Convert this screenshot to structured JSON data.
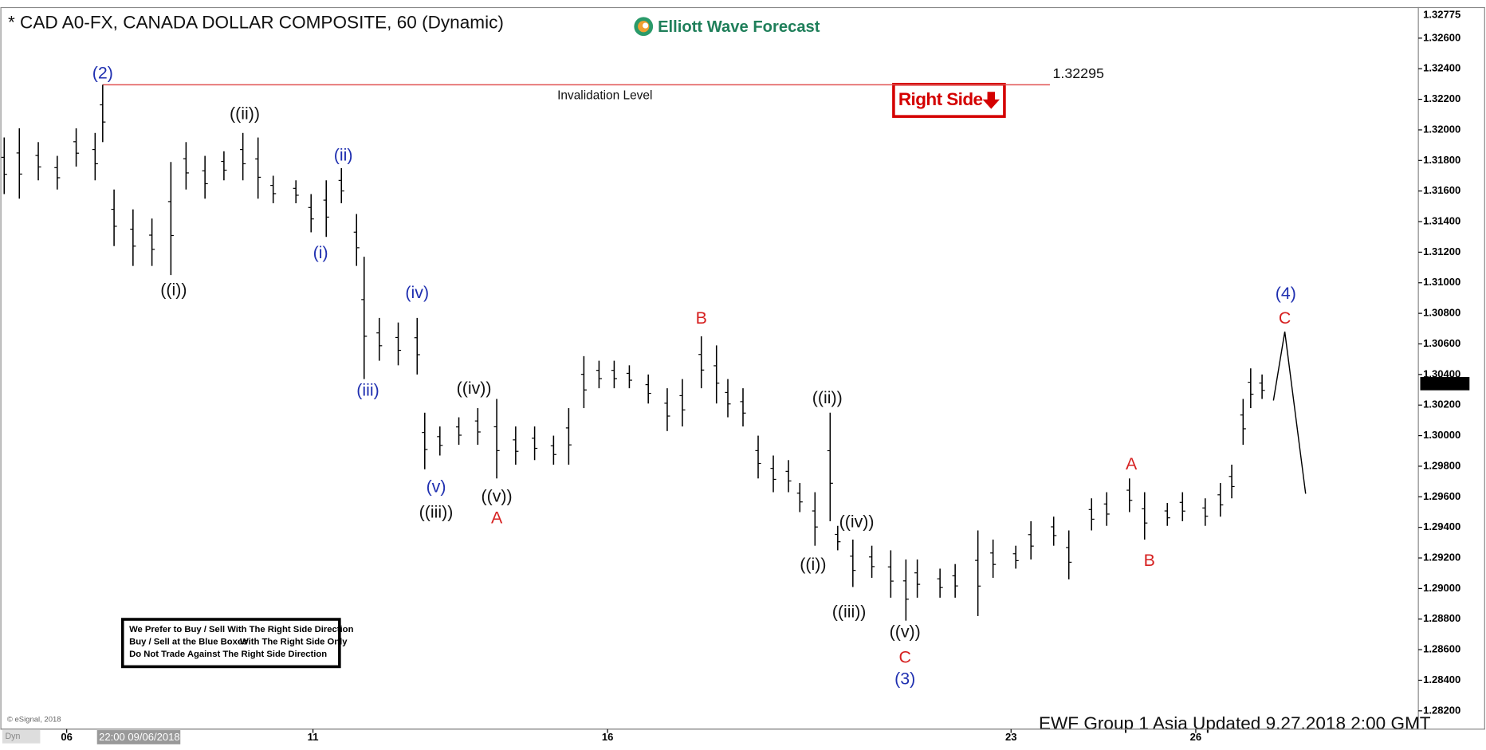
{
  "chart_data": {
    "type": "ohlc",
    "title": "* CAD A0-FX, CANADA DOLLAR COMPOSITE, 60 (Dynamic)",
    "brand": "Elliott Wave Forecast",
    "footer": "EWF Group 1 Asia Updated 9.27.2018 2:00 GMT",
    "source": "© eSignal, 2018",
    "mode": "Dyn",
    "cursor_label": "22:00 09/06/2018",
    "right_side": "Right Side",
    "notes": [
      "We Prefer to Buy / Sell With The Right Side Direction",
      "Buy / Sell at the Blue Boxes",
      "With The Right Side Only",
      "Do Not Trade Against The Right Side Direction"
    ],
    "invalidation": {
      "value": 1.32295,
      "label": "1.32295",
      "text": "Invalidation Level",
      "color": "#e05050"
    },
    "high_label": {
      "value": 1.32775,
      "label": "1.32775"
    },
    "last_price": {
      "value": 1.3034,
      "label": "1.30340"
    },
    "color": "#000000",
    "xlim": [
      0,
      374.25
    ],
    "ylim": [
      1.2808,
      1.328
    ],
    "xticks": [
      {
        "value": 17.5,
        "label": "06"
      },
      {
        "value": 82.5,
        "label": "11"
      },
      {
        "value": 160.25,
        "label": "16"
      },
      {
        "value": 266.75,
        "label": "23"
      },
      {
        "value": 315.5,
        "label": "26"
      }
    ],
    "yticks": [
      {
        "value": 1.326,
        "label": "1.32600"
      },
      {
        "value": 1.324,
        "label": "1.32400"
      },
      {
        "value": 1.322,
        "label": "1.32200"
      },
      {
        "value": 1.32,
        "label": "1.32000"
      },
      {
        "value": 1.318,
        "label": "1.31800"
      },
      {
        "value": 1.316,
        "label": "1.31600"
      },
      {
        "value": 1.314,
        "label": "1.31400"
      },
      {
        "value": 1.312,
        "label": "1.31200"
      },
      {
        "value": 1.31,
        "label": "1.31000"
      },
      {
        "value": 1.308,
        "label": "1.30800"
      },
      {
        "value": 1.306,
        "label": "1.30600"
      },
      {
        "value": 1.304,
        "label": "1.30400"
      },
      {
        "value": 1.302,
        "label": "1.30200"
      },
      {
        "value": 1.3,
        "label": "1.30000"
      },
      {
        "value": 1.298,
        "label": "1.29800"
      },
      {
        "value": 1.296,
        "label": "1.29600"
      },
      {
        "value": 1.294,
        "label": "1.29400"
      },
      {
        "value": 1.292,
        "label": "1.29200"
      },
      {
        "value": 1.29,
        "label": "1.29000"
      },
      {
        "value": 1.288,
        "label": "1.28800"
      },
      {
        "value": 1.286,
        "label": "1.28600"
      },
      {
        "value": 1.284,
        "label": "1.28400"
      },
      {
        "value": 1.282,
        "label": "1.28200"
      }
    ],
    "x": [
      1,
      5,
      10,
      15,
      20,
      25,
      27,
      30,
      35,
      40,
      45,
      49,
      54,
      59,
      64,
      68,
      72,
      78,
      82,
      86,
      90,
      94,
      96,
      100,
      105,
      110,
      112,
      116,
      121,
      126,
      131,
      136,
      141,
      146,
      150,
      154,
      158,
      162,
      166,
      171,
      176,
      180,
      185,
      189,
      192,
      196,
      200,
      204,
      208,
      211,
      215,
      219,
      221,
      225,
      230,
      235,
      239,
      242,
      248,
      252,
      258,
      262,
      268,
      272,
      278,
      282,
      288,
      292,
      298,
      302,
      308,
      312,
      318,
      322,
      325,
      328,
      330,
      333
    ],
    "high": [
      1.3195,
      1.3201,
      1.3192,
      1.3183,
      1.3201,
      1.3198,
      1.32295,
      1.3161,
      1.3148,
      1.3142,
      1.3179,
      1.3192,
      1.3183,
      1.3186,
      1.3198,
      1.3195,
      1.317,
      1.3167,
      1.3158,
      1.3167,
      1.3175,
      1.3145,
      1.3117,
      1.3077,
      1.3074,
      1.3077,
      1.3015,
      1.3006,
      1.3012,
      1.3018,
      1.3024,
      1.3006,
      1.3006,
      1.3,
      1.3018,
      1.3052,
      1.3049,
      1.3049,
      1.3046,
      1.304,
      1.3031,
      1.3037,
      1.3065,
      1.3059,
      1.3037,
      1.3031,
      1.3,
      1.2987,
      1.2984,
      1.2969,
      1.2963,
      1.3015,
      1.2941,
      1.2932,
      1.2928,
      1.2925,
      1.2919,
      1.2919,
      1.2913,
      1.2916,
      1.2938,
      1.2932,
      1.2928,
      1.2944,
      1.2947,
      1.2938,
      1.2959,
      1.2963,
      1.2972,
      1.2963,
      1.2956,
      1.2963,
      1.2959,
      1.2969,
      1.2981,
      1.3024,
      1.3044,
      1.304
    ],
    "low": [
      1.3158,
      1.3155,
      1.3167,
      1.3161,
      1.3176,
      1.3167,
      1.3192,
      1.3124,
      1.3111,
      1.3111,
      1.3105,
      1.3161,
      1.3155,
      1.3167,
      1.3167,
      1.3155,
      1.3152,
      1.3152,
      1.3133,
      1.313,
      1.3152,
      1.3111,
      1.3037,
      1.3049,
      1.3046,
      1.304,
      1.2978,
      1.2987,
      1.2994,
      1.2994,
      1.2972,
      1.2981,
      1.2984,
      1.2981,
      1.2981,
      1.3018,
      1.3031,
      1.3031,
      1.3031,
      1.3021,
      1.3003,
      1.3006,
      1.3031,
      1.3021,
      1.3012,
      1.3006,
      1.2972,
      1.2963,
      1.2963,
      1.295,
      1.2928,
      1.2944,
      1.2925,
      1.2901,
      1.2907,
      1.2894,
      1.2879,
      1.2894,
      1.2894,
      1.2894,
      1.2882,
      1.2907,
      1.2913,
      1.2919,
      1.2928,
      1.2906,
      1.2938,
      1.2941,
      1.295,
      1.2932,
      1.2941,
      1.2944,
      1.2941,
      1.2947,
      1.2959,
      1.2994,
      1.3018,
      1.3024
    ],
    "projection": {
      "x": [
        336,
        339,
        344.5
      ],
      "values": [
        1.3023,
        1.3068,
        1.2962
      ]
    },
    "annotations": [
      {
        "text": "(2)",
        "color": "#1f2fb0"
      },
      {
        "text": "((ii))",
        "color": "#111111"
      },
      {
        "text": "(ii)",
        "color": "#1f2fb0"
      },
      {
        "text": "(i)",
        "color": "#1f2fb0"
      },
      {
        "text": "((i))",
        "color": "#111111"
      },
      {
        "text": "(iv)",
        "color": "#1f2fb0"
      },
      {
        "text": "(iii)",
        "color": "#1f2fb0"
      },
      {
        "text": "((iv))",
        "color": "#111111"
      },
      {
        "text": "(v)",
        "color": "#1f2fb0"
      },
      {
        "text": "((v))",
        "color": "#111111"
      },
      {
        "text": "((iii))",
        "color": "#111111"
      },
      {
        "text": "A",
        "color": "#d62020"
      },
      {
        "text": "B",
        "color": "#d62020"
      },
      {
        "text": "((ii))",
        "color": "#111111"
      },
      {
        "text": "((iv))",
        "color": "#111111"
      },
      {
        "text": "((i))",
        "color": "#111111"
      },
      {
        "text": "((iii))",
        "color": "#111111"
      },
      {
        "text": "((v))",
        "color": "#111111"
      },
      {
        "text": "C",
        "color": "#d62020"
      },
      {
        "text": "(3)",
        "color": "#1f2fb0"
      },
      {
        "text": "A",
        "color": "#d62020"
      },
      {
        "text": "B",
        "color": "#d62020"
      },
      {
        "text": "(4)",
        "color": "#1f2fb0"
      },
      {
        "text": "C",
        "color": "#d62020"
      }
    ]
  }
}
